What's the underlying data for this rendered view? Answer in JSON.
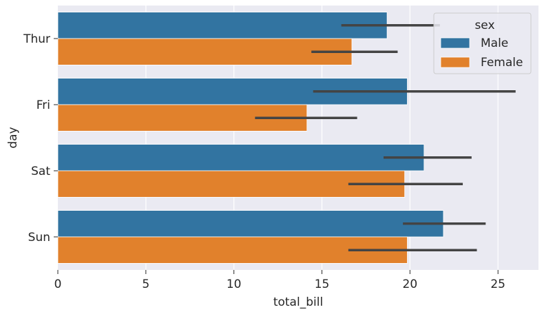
{
  "chart_data": {
    "type": "bar",
    "orientation": "horizontal",
    "categories": [
      "Thur",
      "Fri",
      "Sat",
      "Sun"
    ],
    "series": [
      {
        "name": "Male",
        "color": "#3274a1",
        "values": [
          18.7,
          19.85,
          20.8,
          21.9
        ],
        "ci_low": [
          16.1,
          14.5,
          18.5,
          19.6
        ],
        "ci_high": [
          21.7,
          26.0,
          23.5,
          24.3
        ]
      },
      {
        "name": "Female",
        "color": "#e1812c",
        "values": [
          16.7,
          14.15,
          19.7,
          19.85
        ],
        "ci_low": [
          14.4,
          11.2,
          16.5,
          16.5
        ],
        "ci_high": [
          19.3,
          17.0,
          23.0,
          23.8
        ]
      }
    ],
    "xlabel": "total_bill",
    "ylabel": "day",
    "xlim": [
      0,
      27.3
    ],
    "xticks": [
      0,
      5,
      10,
      15,
      20,
      25
    ],
    "legend": {
      "title": "sex",
      "position": "top-right"
    },
    "grid": true,
    "background_color": "#eaeaf2",
    "errorbar_color": "#444444"
  }
}
